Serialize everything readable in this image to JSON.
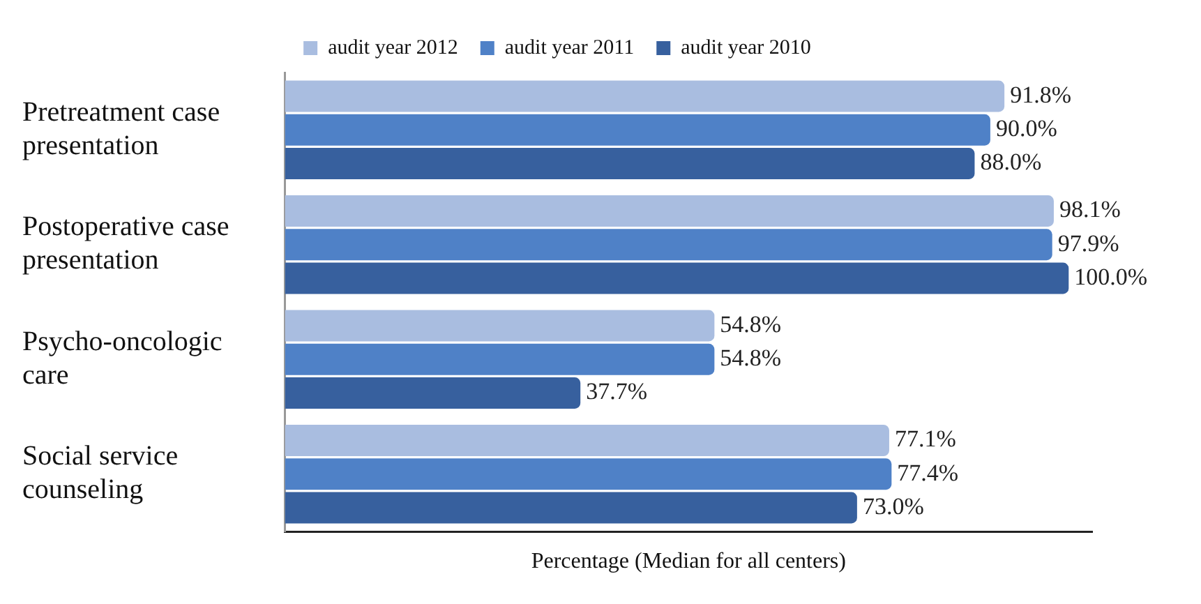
{
  "chart_data": {
    "type": "bar",
    "orientation": "horizontal",
    "xlabel": "Percentage (Median for all centers)",
    "categories": [
      "Pretreatment case presentation",
      "Postoperative case presentation",
      "Psycho-oncologic care",
      "Social service counseling"
    ],
    "series": [
      {
        "name": "audit year 2012",
        "color": "#a9bde0",
        "values": [
          91.8,
          98.1,
          54.8,
          77.1
        ],
        "value_labels": [
          "91.8%",
          "98.1%",
          "54.8%",
          "77.1%"
        ]
      },
      {
        "name": "audit year 2011",
        "color": "#4f81c7",
        "values": [
          90.0,
          97.9,
          54.8,
          77.4
        ],
        "value_labels": [
          "90.0%",
          "97.9%",
          "54.8%",
          "77.4%"
        ]
      },
      {
        "name": "audit year 2010",
        "color": "#37609e",
        "values": [
          88.0,
          100.0,
          37.7,
          73.0
        ],
        "value_labels": [
          "88.0%",
          "100.0%",
          "37.7%",
          "73.0%"
        ]
      }
    ],
    "xlim": [
      0,
      103
    ],
    "tick_labels": "y",
    "grid": false,
    "legend": "top"
  }
}
